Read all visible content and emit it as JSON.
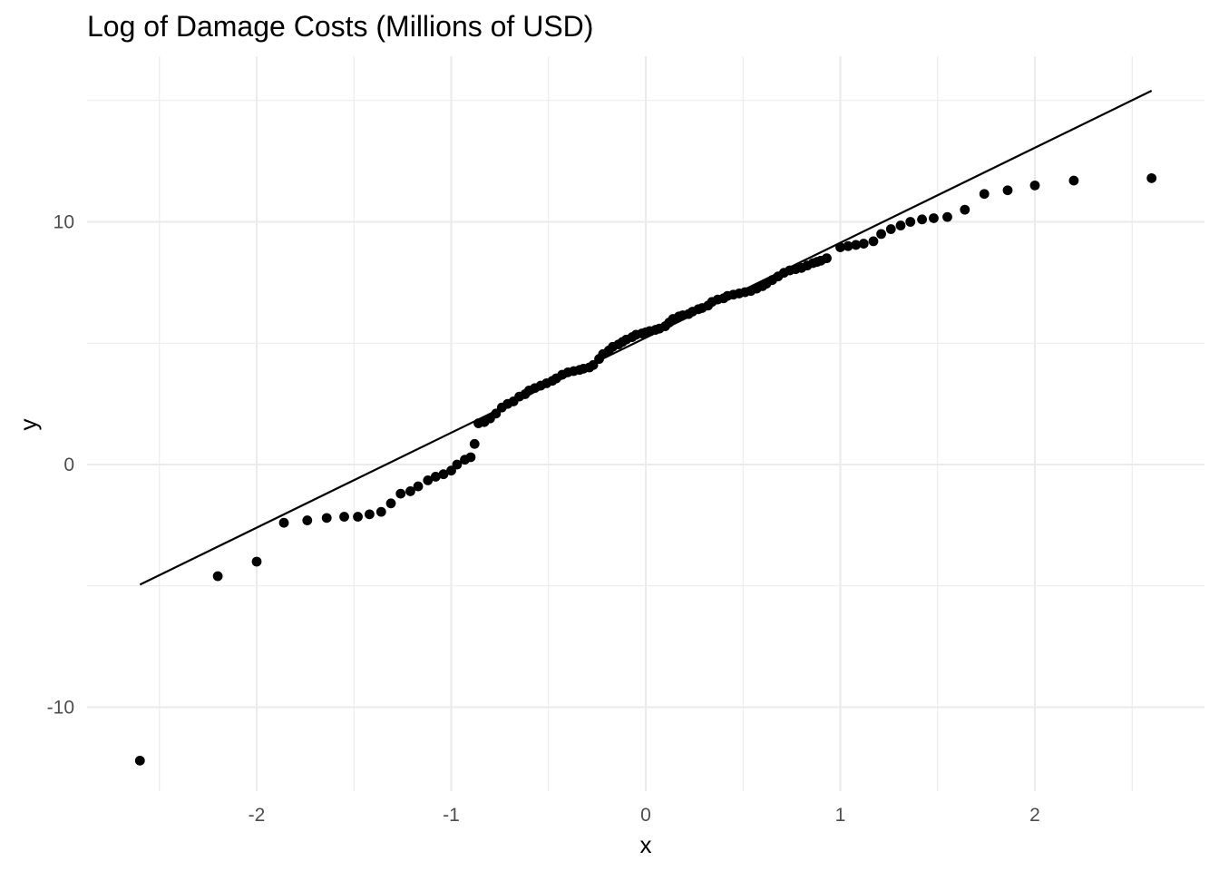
{
  "chart_data": {
    "type": "scatter",
    "title": "Log of Damage Costs (Millions of USD)",
    "xlabel": "x",
    "ylabel": "y",
    "xlim": [
      -2.61,
      2.72
    ],
    "ylim": [
      -13.5,
      16.8
    ],
    "x_ticks": [
      -2,
      -1,
      0,
      1,
      2
    ],
    "x_tick_labels": [
      "-2",
      "-1",
      "0",
      "1",
      "2"
    ],
    "y_ticks": [
      -10,
      0,
      10
    ],
    "y_tick_labels": [
      "-10",
      "0",
      "10"
    ],
    "x_minor_ticks": [
      -2.5,
      -1.5,
      -0.5,
      0.5,
      1.5,
      2.5
    ],
    "y_minor_ticks": [
      -5,
      5,
      15
    ],
    "grid": true,
    "reference_line": {
      "x": [
        -2.6,
        2.6
      ],
      "y": [
        -4.95,
        15.4
      ]
    },
    "series": [
      {
        "points": [
          [
            -2.6,
            -12.2
          ],
          [
            -2.2,
            -4.6
          ],
          [
            -2.0,
            -4.0
          ],
          [
            -1.86,
            -2.4
          ],
          [
            -1.74,
            -2.3
          ],
          [
            -1.64,
            -2.2
          ],
          [
            -1.55,
            -2.15
          ],
          [
            -1.48,
            -2.15
          ],
          [
            -1.42,
            -2.05
          ],
          [
            -1.36,
            -1.95
          ],
          [
            -1.31,
            -1.6
          ],
          [
            -1.26,
            -1.2
          ],
          [
            -1.21,
            -1.1
          ],
          [
            -1.17,
            -0.9
          ],
          [
            -1.12,
            -0.65
          ],
          [
            -1.08,
            -0.5
          ],
          [
            -1.04,
            -0.4
          ],
          [
            -1.0,
            -0.25
          ],
          [
            -0.97,
            0.0
          ],
          [
            -0.93,
            0.2
          ],
          [
            -0.9,
            0.3
          ],
          [
            -0.88,
            0.85
          ],
          [
            -0.86,
            1.7
          ],
          [
            -0.83,
            1.75
          ],
          [
            -0.8,
            1.9
          ],
          [
            -0.77,
            2.1
          ],
          [
            -0.74,
            2.35
          ],
          [
            -0.71,
            2.5
          ],
          [
            -0.68,
            2.6
          ],
          [
            -0.65,
            2.8
          ],
          [
            -0.62,
            2.9
          ],
          [
            -0.6,
            3.05
          ],
          [
            -0.57,
            3.15
          ],
          [
            -0.54,
            3.25
          ],
          [
            -0.51,
            3.35
          ],
          [
            -0.48,
            3.45
          ],
          [
            -0.46,
            3.55
          ],
          [
            -0.43,
            3.7
          ],
          [
            -0.4,
            3.8
          ],
          [
            -0.37,
            3.85
          ],
          [
            -0.34,
            3.9
          ],
          [
            -0.32,
            3.95
          ],
          [
            -0.29,
            4.0
          ],
          [
            -0.27,
            4.1
          ],
          [
            -0.24,
            4.35
          ],
          [
            -0.22,
            4.55
          ],
          [
            -0.19,
            4.7
          ],
          [
            -0.17,
            4.85
          ],
          [
            -0.14,
            4.95
          ],
          [
            -0.12,
            5.05
          ],
          [
            -0.1,
            5.15
          ],
          [
            -0.07,
            5.25
          ],
          [
            -0.05,
            5.35
          ],
          [
            -0.02,
            5.4
          ],
          [
            0.0,
            5.45
          ],
          [
            0.02,
            5.5
          ],
          [
            0.05,
            5.55
          ],
          [
            0.07,
            5.6
          ],
          [
            0.1,
            5.7
          ],
          [
            0.12,
            5.85
          ],
          [
            0.14,
            6.0
          ],
          [
            0.17,
            6.1
          ],
          [
            0.19,
            6.15
          ],
          [
            0.22,
            6.2
          ],
          [
            0.24,
            6.3
          ],
          [
            0.27,
            6.4
          ],
          [
            0.29,
            6.45
          ],
          [
            0.32,
            6.55
          ],
          [
            0.34,
            6.7
          ],
          [
            0.37,
            6.8
          ],
          [
            0.4,
            6.85
          ],
          [
            0.42,
            6.95
          ],
          [
            0.45,
            7.0
          ],
          [
            0.48,
            7.05
          ],
          [
            0.51,
            7.1
          ],
          [
            0.54,
            7.15
          ],
          [
            0.57,
            7.25
          ],
          [
            0.6,
            7.35
          ],
          [
            0.62,
            7.45
          ],
          [
            0.65,
            7.6
          ],
          [
            0.68,
            7.75
          ],
          [
            0.71,
            7.9
          ],
          [
            0.74,
            8.0
          ],
          [
            0.77,
            8.05
          ],
          [
            0.8,
            8.1
          ],
          [
            0.83,
            8.2
          ],
          [
            0.86,
            8.3
          ],
          [
            0.88,
            8.35
          ],
          [
            0.9,
            8.4
          ],
          [
            0.93,
            8.5
          ],
          [
            1.0,
            8.95
          ],
          [
            1.04,
            9.0
          ],
          [
            1.08,
            9.05
          ],
          [
            1.12,
            9.1
          ],
          [
            1.17,
            9.2
          ],
          [
            1.21,
            9.5
          ],
          [
            1.26,
            9.7
          ],
          [
            1.31,
            9.85
          ],
          [
            1.36,
            10.0
          ],
          [
            1.42,
            10.1
          ],
          [
            1.48,
            10.15
          ],
          [
            1.55,
            10.2
          ],
          [
            1.64,
            10.5
          ],
          [
            1.74,
            11.15
          ],
          [
            1.86,
            11.3
          ],
          [
            2.0,
            11.5
          ],
          [
            2.2,
            11.7
          ],
          [
            2.6,
            11.8
          ]
        ]
      }
    ]
  }
}
